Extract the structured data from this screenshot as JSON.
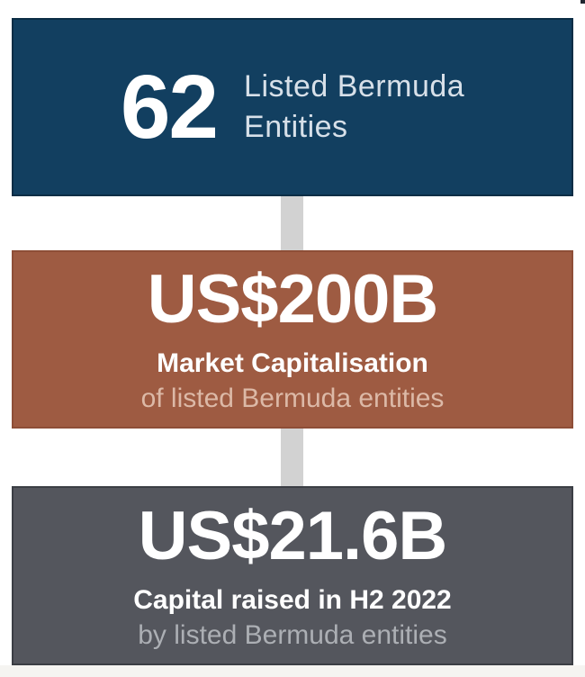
{
  "page": {
    "background": "#ffffff",
    "footer_strip_color": "#f5f4f1",
    "corner_artifact_color": "#202730"
  },
  "infographic": {
    "connector_color": "#d2d2d2",
    "cards": [
      {
        "id": "listed-entities",
        "background": "#123f60",
        "border_color": "#0b2d45",
        "stat": "62",
        "label_line_1": "Listed Bermuda",
        "label_line_2": "Entities",
        "label_color": "#d7e0e9"
      },
      {
        "id": "market-capitalisation",
        "background": "#9e5b42",
        "border_color": "#8e4e37",
        "stat": "US$200B",
        "subtitle_bold": "Market Capitalisation",
        "subtitle_light": "of listed Bermuda entities",
        "subtitle_light_color": "#dcb9a7"
      },
      {
        "id": "capital-raised",
        "background": "#54565d",
        "border_color": "#3b3e44",
        "stat": "US$21.6B",
        "subtitle_bold": "Capital raised in H2 2022",
        "subtitle_light": "by listed Bermuda entities",
        "subtitle_light_color": "#acafb4"
      }
    ]
  }
}
